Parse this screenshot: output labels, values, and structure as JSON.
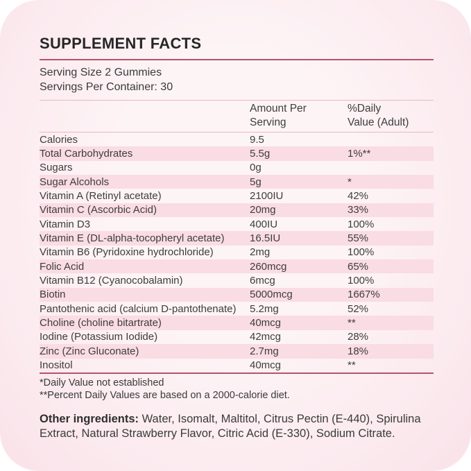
{
  "title": "SUPPLEMENT FACTS",
  "serving": {
    "size": "Serving Size 2 Gummies",
    "per_container": "Servings Per Container: 30"
  },
  "columns": {
    "amount_line1": "Amount Per",
    "amount_line2": "Serving",
    "daily_line1": "%Daily",
    "daily_line2": "Value (Adult)"
  },
  "table": {
    "rows": [
      {
        "name": "Calories",
        "amount": "9.5",
        "daily": ""
      },
      {
        "name": "Total Carbohydrates",
        "amount": "5.5g",
        "daily": "1%**"
      },
      {
        "name": "Sugars",
        "amount": "0g",
        "daily": ""
      },
      {
        "name": "Sugar Alcohols",
        "amount": "5g",
        "daily": "*"
      },
      {
        "name": "Vitamin A (Retinyl acetate)",
        "amount": "2100IU",
        "daily": "42%"
      },
      {
        "name": "Vitamin C (Ascorbic Acid)",
        "amount": "20mg",
        "daily": "33%"
      },
      {
        "name": "Vitamin D3",
        "amount": "400IU",
        "daily": "100%"
      },
      {
        "name": "Vitamin E (DL-alpha-tocopheryl acetate)",
        "amount": "16.5IU",
        "daily": "55%"
      },
      {
        "name": "Vitamin B6 (Pyridoxine hydrochloride)",
        "amount": "2mg",
        "daily": "100%"
      },
      {
        "name": "Folic Acid",
        "amount": "260mcg",
        "daily": "65%"
      },
      {
        "name": "Vitamin B12 (Cyanocobalamin)",
        "amount": "6mcg",
        "daily": "100%"
      },
      {
        "name": "Biotin",
        "amount": "5000mcg",
        "daily": "1667%"
      },
      {
        "name": "Pantothenic acid (calcium D-pantothenate)",
        "amount": "5.2mg",
        "daily": "52%"
      },
      {
        "name": "Choline (choline bitartrate)",
        "amount": "40mcg",
        "daily": "**"
      },
      {
        "name": "Iodine (Potassium Iodide)",
        "amount": "42mcg",
        "daily": "28%"
      },
      {
        "name": "Zinc (Zinc Gluconate)",
        "amount": "2.7mg",
        "daily": "18%"
      },
      {
        "name": "Inositol",
        "amount": "40mcg",
        "daily": "**"
      }
    ]
  },
  "footnotes": [
    "*Daily Value not established",
    "**Percent Daily Values are based on a 2000-calorie diet."
  ],
  "other_ingredients": {
    "label": "Other ingredients:",
    "text": " Water, Isomalt, Maltitol, Citrus Pectin (E-440), Spirulina Extract, Natural Strawberry Flavor, Citric Acid (E-330), Sodium Citrate."
  },
  "colors": {
    "background_pink": "#fbe9ee",
    "row_pink": "#fadce4",
    "rule_dark_rose": "#b5536e",
    "rule_light_rose": "#eab6c2",
    "text_dark": "#3d3d3d"
  }
}
